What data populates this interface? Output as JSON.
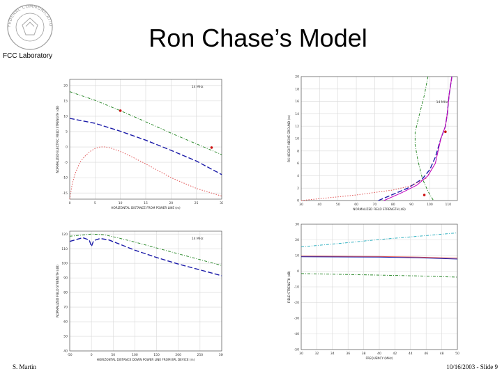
{
  "header": {
    "seal_text": "FEDERAL COMMUNICATIONS COMMISSION",
    "lab_label": "FCC Laboratory",
    "title": "Ron Chase’s Model"
  },
  "footer": {
    "author": "S. Martin",
    "date_slide": "10/16/2003 - Slide 9"
  },
  "colors": {
    "green": "#2e8b2e",
    "blue": "#1a1aa8",
    "red": "#e05050",
    "cyan": "#30b0c0",
    "magenta": "#c000c0"
  },
  "chart_data": [
    {
      "type": "line",
      "id": "top_left",
      "annotation": "14 MHz",
      "xlabel": "HORIZONTAL DISTANCE FROM POWER LINE (m)",
      "ylabel": "NORMALIZED ELECTRIC FIELD STRENGTH (dB)",
      "xlim": [
        0,
        30
      ],
      "ylim": [
        -17,
        22
      ],
      "xticks": [
        0,
        5,
        10,
        15,
        20,
        25,
        30
      ],
      "yticks": [
        20,
        15,
        10,
        5,
        0,
        -5,
        -10,
        -15
      ],
      "series": [
        {
          "name": "green",
          "style": "dashdot",
          "x": [
            0,
            5,
            10,
            15,
            20,
            25,
            30
          ],
          "y": [
            18,
            15.2,
            11.8,
            8.2,
            4.5,
            1,
            -2.5
          ]
        },
        {
          "name": "blue",
          "style": "dash",
          "x": [
            0,
            5,
            10,
            15,
            20,
            25,
            30
          ],
          "y": [
            9.3,
            7.7,
            5.1,
            2.2,
            -1.1,
            -4.6,
            -9
          ]
        },
        {
          "name": "red",
          "style": "dot",
          "x": [
            0,
            0.5,
            1,
            2,
            3,
            4,
            5,
            6,
            7,
            8,
            10,
            12,
            15,
            20,
            25,
            30
          ],
          "y": [
            -17,
            -12,
            -9,
            -5,
            -3,
            -1.5,
            -0.5,
            0,
            0,
            -0.3,
            -1.5,
            -3,
            -5.5,
            -10,
            -13.5,
            -16
          ]
        }
      ],
      "markers": [
        {
          "x": 10,
          "y": 11.8
        },
        {
          "x": 28,
          "y": -0.2
        }
      ]
    },
    {
      "type": "line",
      "id": "top_right",
      "annotation": "14 MHz",
      "xlabel": "NORMALIZED FIELD STRENGTH (dB)",
      "ylabel": "RX HEIGHT ABOVE GROUND (m)",
      "xlim": [
        30,
        115
      ],
      "ylim": [
        0,
        20
      ],
      "xticks": [
        30,
        40,
        50,
        60,
        70,
        80,
        90,
        100,
        110
      ],
      "yticks": [
        20,
        18,
        16,
        14,
        12,
        10,
        8,
        6,
        4,
        2,
        0
      ],
      "series": [
        {
          "name": "green",
          "style": "dashdot",
          "x": [
            99,
            97,
            94,
            92,
            92,
            93.5,
            96,
            99,
            102
          ],
          "y": [
            20,
            17,
            13.5,
            11,
            9,
            6.5,
            3.5,
            1.5,
            0
          ]
        },
        {
          "name": "blue",
          "style": "dash",
          "x": [
            72,
            80,
            88,
            96,
            100,
            103,
            106,
            108.5,
            109.5,
            110.5,
            112
          ],
          "y": [
            0,
            1,
            2,
            3.5,
            5,
            7,
            10,
            12,
            14,
            17,
            20
          ]
        },
        {
          "name": "red",
          "style": "dot",
          "x": [
            30,
            40,
            50,
            60,
            70,
            80,
            90,
            98,
            103,
            106,
            108.5,
            109.5,
            110.5,
            112
          ],
          "y": [
            0,
            0.3,
            0.6,
            0.9,
            1.3,
            1.7,
            2.4,
            3.6,
            6,
            10,
            12,
            14,
            17,
            20
          ]
        },
        {
          "name": "magenta",
          "style": "solid",
          "x": [
            75,
            85,
            93,
            99,
            103,
            106,
            108.5,
            109.5,
            110.5,
            112
          ],
          "y": [
            0,
            1.3,
            2.5,
            4,
            6,
            10,
            12,
            14,
            17,
            20
          ]
        }
      ],
      "markers": [
        {
          "x": 108.5,
          "y": 11.1
        },
        {
          "x": 97,
          "y": 0.9
        }
      ]
    },
    {
      "type": "line",
      "id": "bottom_left",
      "annotation": "14 MHz",
      "xlabel": "HORIZONTAL DISTANCE DOWN POWER LINE FROM BPL DEVICE (m)",
      "ylabel": "NORMALIZED FIELD STRENGTH (dB)",
      "xlim": [
        -50,
        300
      ],
      "ylim": [
        40,
        122
      ],
      "xticks": [
        -50,
        0,
        50,
        100,
        150,
        200,
        250,
        300
      ],
      "yticks": [
        120,
        110,
        100,
        90,
        80,
        70,
        60,
        50,
        40
      ],
      "series": [
        {
          "name": "green",
          "style": "dashdot",
          "x": [
            -50,
            0,
            30,
            60,
            100,
            150,
            200,
            250,
            300
          ],
          "y": [
            118.5,
            120,
            119.5,
            117.5,
            114.5,
            110.5,
            106.5,
            102.5,
            98.5
          ]
        },
        {
          "name": "blue",
          "style": "dash",
          "x": [
            -50,
            -20,
            -5,
            0,
            5,
            20,
            40,
            70,
            100,
            150,
            200,
            250,
            300
          ],
          "y": [
            115,
            117.5,
            116,
            111.5,
            115.5,
            117,
            116,
            112.5,
            109,
            104,
            99.5,
            95.5,
            91.5
          ]
        }
      ]
    },
    {
      "type": "line",
      "id": "bottom_right",
      "xlabel": "FREQUENCY (MHz)",
      "ylabel": "FIELD STRENGTH (dB)",
      "xlim": [
        30,
        50
      ],
      "ylim": [
        -50,
        30
      ],
      "xticks": [
        30,
        32,
        34,
        36,
        38,
        40,
        42,
        44,
        46,
        48,
        50
      ],
      "yticks": [
        30,
        20,
        10,
        0,
        -10,
        -20,
        -30,
        -40,
        -50
      ],
      "series": [
        {
          "name": "cyan",
          "style": "dashdot",
          "x": [
            30,
            35,
            40,
            45,
            50
          ],
          "y": [
            15.5,
            17.8,
            20.2,
            22.3,
            24.5
          ]
        },
        {
          "name": "red",
          "style": "solid",
          "x": [
            30,
            40,
            45,
            50
          ],
          "y": [
            9.6,
            9.4,
            9,
            8.3
          ]
        },
        {
          "name": "blue",
          "style": "solid",
          "x": [
            30,
            40,
            45,
            50
          ],
          "y": [
            9.2,
            9,
            8.6,
            7.8
          ]
        },
        {
          "name": "green",
          "style": "dashdot",
          "x": [
            30,
            35,
            40,
            45,
            50
          ],
          "y": [
            -1.5,
            -2,
            -2.5,
            -3,
            -3.8
          ]
        }
      ]
    }
  ]
}
